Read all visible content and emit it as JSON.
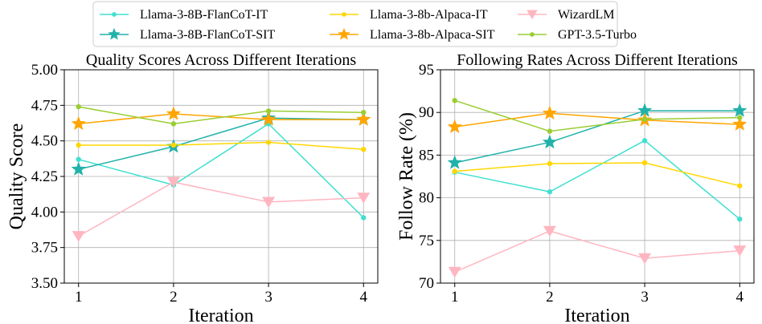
{
  "chart_data": [
    {
      "type": "line",
      "title": "Quality Scores Across Different Iterations",
      "xlabel": "Iteration",
      "ylabel": "Quality Score",
      "x": [
        1,
        2,
        3,
        4
      ],
      "xlim": [
        0.85,
        4.15
      ],
      "ylim": [
        3.5,
        5.0
      ],
      "yticks": [
        "3.50",
        "3.75",
        "4.00",
        "4.25",
        "4.50",
        "4.75",
        "5.00"
      ],
      "grid": true,
      "series": [
        {
          "name": "Llama-3-8B-FlanCoT-IT",
          "values": [
            4.37,
            4.19,
            4.62,
            3.96
          ]
        },
        {
          "name": "Llama-3-8B-FlanCoT-SIT",
          "values": [
            4.3,
            4.46,
            4.66,
            4.65
          ]
        },
        {
          "name": "Llama-3-8b-Alpaca-IT",
          "values": [
            4.47,
            4.47,
            4.49,
            4.44
          ]
        },
        {
          "name": "Llama-3-8b-Alpaca-SIT",
          "values": [
            4.62,
            4.69,
            4.65,
            4.65
          ]
        },
        {
          "name": "WizardLM",
          "values": [
            3.83,
            4.21,
            4.07,
            4.1
          ]
        },
        {
          "name": "GPT-3.5-Turbo",
          "values": [
            4.74,
            4.62,
            4.71,
            4.7
          ]
        }
      ]
    },
    {
      "type": "line",
      "title": "Following Rates Across Different Iterations",
      "xlabel": "Iteration",
      "ylabel": "Follow Rate (%)",
      "x": [
        1,
        2,
        3,
        4
      ],
      "xlim": [
        0.85,
        4.15
      ],
      "ylim": [
        70,
        95
      ],
      "yticks": [
        "70",
        "75",
        "80",
        "85",
        "90",
        "95"
      ],
      "grid": true,
      "series": [
        {
          "name": "Llama-3-8B-FlanCoT-IT",
          "values": [
            83.0,
            80.7,
            86.7,
            77.5
          ]
        },
        {
          "name": "Llama-3-8B-FlanCoT-SIT",
          "values": [
            84.1,
            86.5,
            90.2,
            90.2
          ]
        },
        {
          "name": "Llama-3-8b-Alpaca-IT",
          "values": [
            83.1,
            84.0,
            84.1,
            81.4
          ]
        },
        {
          "name": "Llama-3-8b-Alpaca-SIT",
          "values": [
            88.3,
            89.9,
            89.1,
            88.6
          ]
        },
        {
          "name": "WizardLM",
          "values": [
            71.3,
            76.1,
            72.9,
            73.8
          ]
        },
        {
          "name": "GPT-3.5-Turbo",
          "values": [
            91.4,
            87.8,
            89.2,
            89.4
          ]
        }
      ]
    }
  ],
  "legend": {
    "placement": "top-center",
    "columns": 3,
    "entries": [
      {
        "name": "Llama-3-8B-FlanCoT-IT",
        "color": "#40e0d0",
        "marker": "circle"
      },
      {
        "name": "Llama-3-8B-FlanCoT-SIT",
        "color": "#20b2aa",
        "marker": "star"
      },
      {
        "name": "Llama-3-8b-Alpaca-IT",
        "color": "#ffd700",
        "marker": "circle"
      },
      {
        "name": "Llama-3-8b-Alpaca-SIT",
        "color": "#ffa500",
        "marker": "star"
      },
      {
        "name": "WizardLM",
        "color": "#ffb6c1",
        "marker": "triangle-down"
      },
      {
        "name": "GPT-3.5-Turbo",
        "color": "#9acd32",
        "marker": "circle"
      }
    ]
  }
}
